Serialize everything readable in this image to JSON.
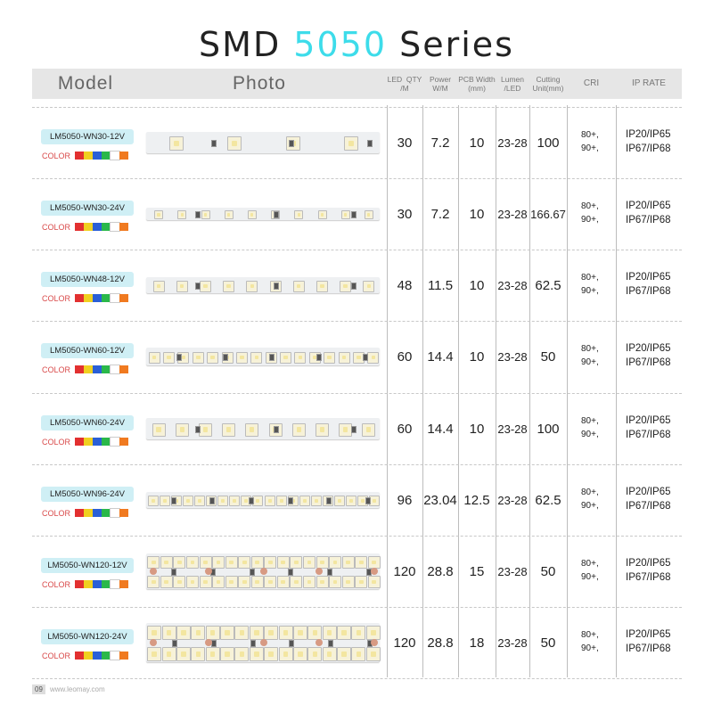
{
  "title": {
    "prefix": "SMD",
    "highlight": "5050",
    "suffix": "Series"
  },
  "headers": {
    "model": "Model",
    "photo": "Photo",
    "led_qty": "LED  QTY\n/M",
    "power": "Power\nW/M",
    "pcb": "PCB Width\n(mm)",
    "lumen": "Lumen\n/LED",
    "cutting": "Cutting\nUnit(mm)",
    "cri": "CRI",
    "ip": "IP RATE"
  },
  "color_label": "COLOR",
  "swatch_colors": [
    "#e23030",
    "#f0d020",
    "#2a5fd6",
    "#2ab84a",
    "#ffffff",
    "#f07a20"
  ],
  "rows": [
    {
      "model": "LM5050-WN30-12V",
      "qty": "30",
      "power": "7.2",
      "pcb": "10",
      "lumen": "23-28",
      "cut": "100",
      "cri1": "80+,",
      "cri2": "90+,",
      "ip1": "IP20/IP65",
      "ip2": "IP67/IP68"
    },
    {
      "model": "LM5050-WN30-24V",
      "qty": "30",
      "power": "7.2",
      "pcb": "10",
      "lumen": "23-28",
      "cut": "166.67",
      "cri1": "80+,",
      "cri2": "90+,",
      "ip1": "IP20/IP65",
      "ip2": "IP67/IP68"
    },
    {
      "model": "LM5050-WN48-12V",
      "qty": "48",
      "power": "11.5",
      "pcb": "10",
      "lumen": "23-28",
      "cut": "62.5",
      "cri1": "80+,",
      "cri2": "90+,",
      "ip1": "IP20/IP65",
      "ip2": "IP67/IP68"
    },
    {
      "model": "LM5050-WN60-12V",
      "qty": "60",
      "power": "14.4",
      "pcb": "10",
      "lumen": "23-28",
      "cut": "50",
      "cri1": "80+,",
      "cri2": "90+,",
      "ip1": "IP20/IP65",
      "ip2": "IP67/IP68"
    },
    {
      "model": "LM5050-WN60-24V",
      "qty": "60",
      "power": "14.4",
      "pcb": "10",
      "lumen": "23-28",
      "cut": "100",
      "cri1": "80+,",
      "cri2": "90+,",
      "ip1": "IP20/IP65",
      "ip2": "IP67/IP68"
    },
    {
      "model": "LM5050-WN96-24V",
      "qty": "96",
      "power": "23.04",
      "pcb": "12.5",
      "lumen": "23-28",
      "cut": "62.5",
      "cri1": "80+,",
      "cri2": "90+,",
      "ip1": "IP20/IP65",
      "ip2": "IP67/IP68"
    },
    {
      "model": "LM5050-WN120-12V",
      "qty": "120",
      "power": "28.8",
      "pcb": "15",
      "lumen": "23-28",
      "cut": "50",
      "cri1": "80+,",
      "cri2": "90+,",
      "ip1": "IP20/IP65",
      "ip2": "IP67/IP68"
    },
    {
      "model": "LM5050-WN120-24V",
      "qty": "120",
      "power": "28.8",
      "pcb": "18",
      "lumen": "23-28",
      "cut": "50",
      "cri1": "80+,",
      "cri2": "90+,",
      "ip1": "IP20/IP65",
      "ip2": "IP67/IP68"
    }
  ],
  "footer": {
    "page": "09",
    "site": "www.leomay.com"
  }
}
